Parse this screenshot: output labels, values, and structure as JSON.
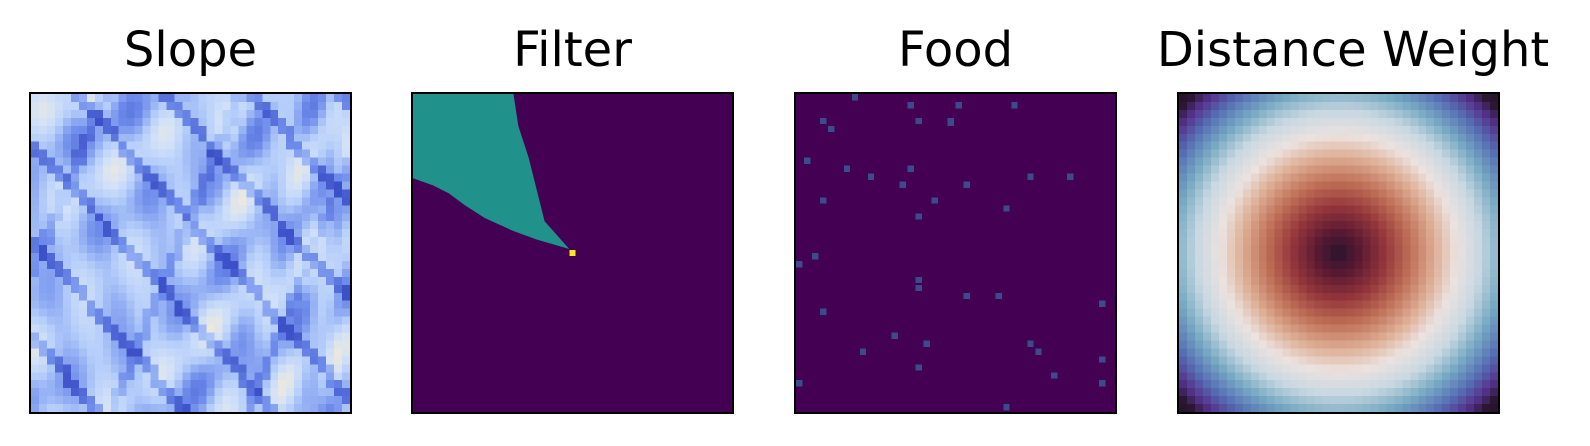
{
  "figure": {
    "titles": [
      "Slope",
      "Filter",
      "Food",
      "Distance Weight"
    ]
  },
  "chart_data": [
    {
      "type": "heatmap",
      "title": "Slope",
      "colormap": "coolwarm",
      "grid": false,
      "grid_size": [
        40,
        40
      ],
      "value_range": [
        0,
        1
      ],
      "pattern": "terrain slope field with diagonal ridge lines running from upper-left to lower-right"
    },
    {
      "type": "heatmap",
      "title": "Filter",
      "colormap": "viridis",
      "grid": false,
      "grid_size": [
        40,
        40
      ],
      "levels": {
        "background": 0,
        "cone": 0.5,
        "origin": 1
      },
      "origin_cell": [
        19,
        19
      ],
      "cone_polygon_cells": [
        [
          0,
          0
        ],
        [
          12.6,
          0
        ],
        [
          13.2,
          4
        ],
        [
          14.5,
          8
        ],
        [
          15.5,
          12
        ],
        [
          16.5,
          16
        ],
        [
          19.6,
          19.5
        ],
        [
          15.5,
          18.3
        ],
        [
          12.5,
          17.2
        ],
        [
          9,
          15.6
        ],
        [
          6.5,
          14
        ],
        [
          4.5,
          12.5
        ],
        [
          2.5,
          11.5
        ],
        [
          0,
          10.6
        ]
      ]
    },
    {
      "type": "heatmap",
      "title": "Food",
      "colormap": "viridis",
      "grid": false,
      "grid_size": [
        40,
        40
      ],
      "background": 0,
      "food_cells": [
        [
          7,
          0
        ],
        [
          14,
          1
        ],
        [
          20,
          1
        ],
        [
          27,
          1
        ],
        [
          3,
          3
        ],
        [
          15,
          3
        ],
        [
          19,
          3
        ],
        [
          19,
          3.2
        ],
        [
          4,
          4
        ],
        [
          1,
          8
        ],
        [
          6,
          9
        ],
        [
          14,
          9
        ],
        [
          9,
          10
        ],
        [
          29,
          10
        ],
        [
          34,
          10
        ],
        [
          13,
          11
        ],
        [
          21,
          11
        ],
        [
          17,
          13
        ],
        [
          3,
          13
        ],
        [
          26,
          14
        ],
        [
          15,
          15
        ],
        [
          2,
          20
        ],
        [
          0,
          21
        ],
        [
          15,
          23
        ],
        [
          15,
          24
        ],
        [
          21,
          25
        ],
        [
          25,
          25
        ],
        [
          38,
          26
        ],
        [
          3,
          27
        ],
        [
          12,
          30
        ],
        [
          16,
          31
        ],
        [
          29,
          31
        ],
        [
          8,
          32
        ],
        [
          30,
          32
        ],
        [
          38,
          33
        ],
        [
          15,
          34
        ],
        [
          32,
          35
        ],
        [
          0,
          36
        ],
        [
          38,
          36
        ],
        [
          26,
          39
        ]
      ]
    },
    {
      "type": "heatmap",
      "title": "Distance Weight",
      "colormap": "twilight_shifted",
      "grid": false,
      "grid_size": [
        40,
        40
      ],
      "center_cell": [
        19.5,
        19.5
      ],
      "value_range": [
        0,
        1
      ],
      "pattern": "radial weight centered on the grid"
    }
  ]
}
